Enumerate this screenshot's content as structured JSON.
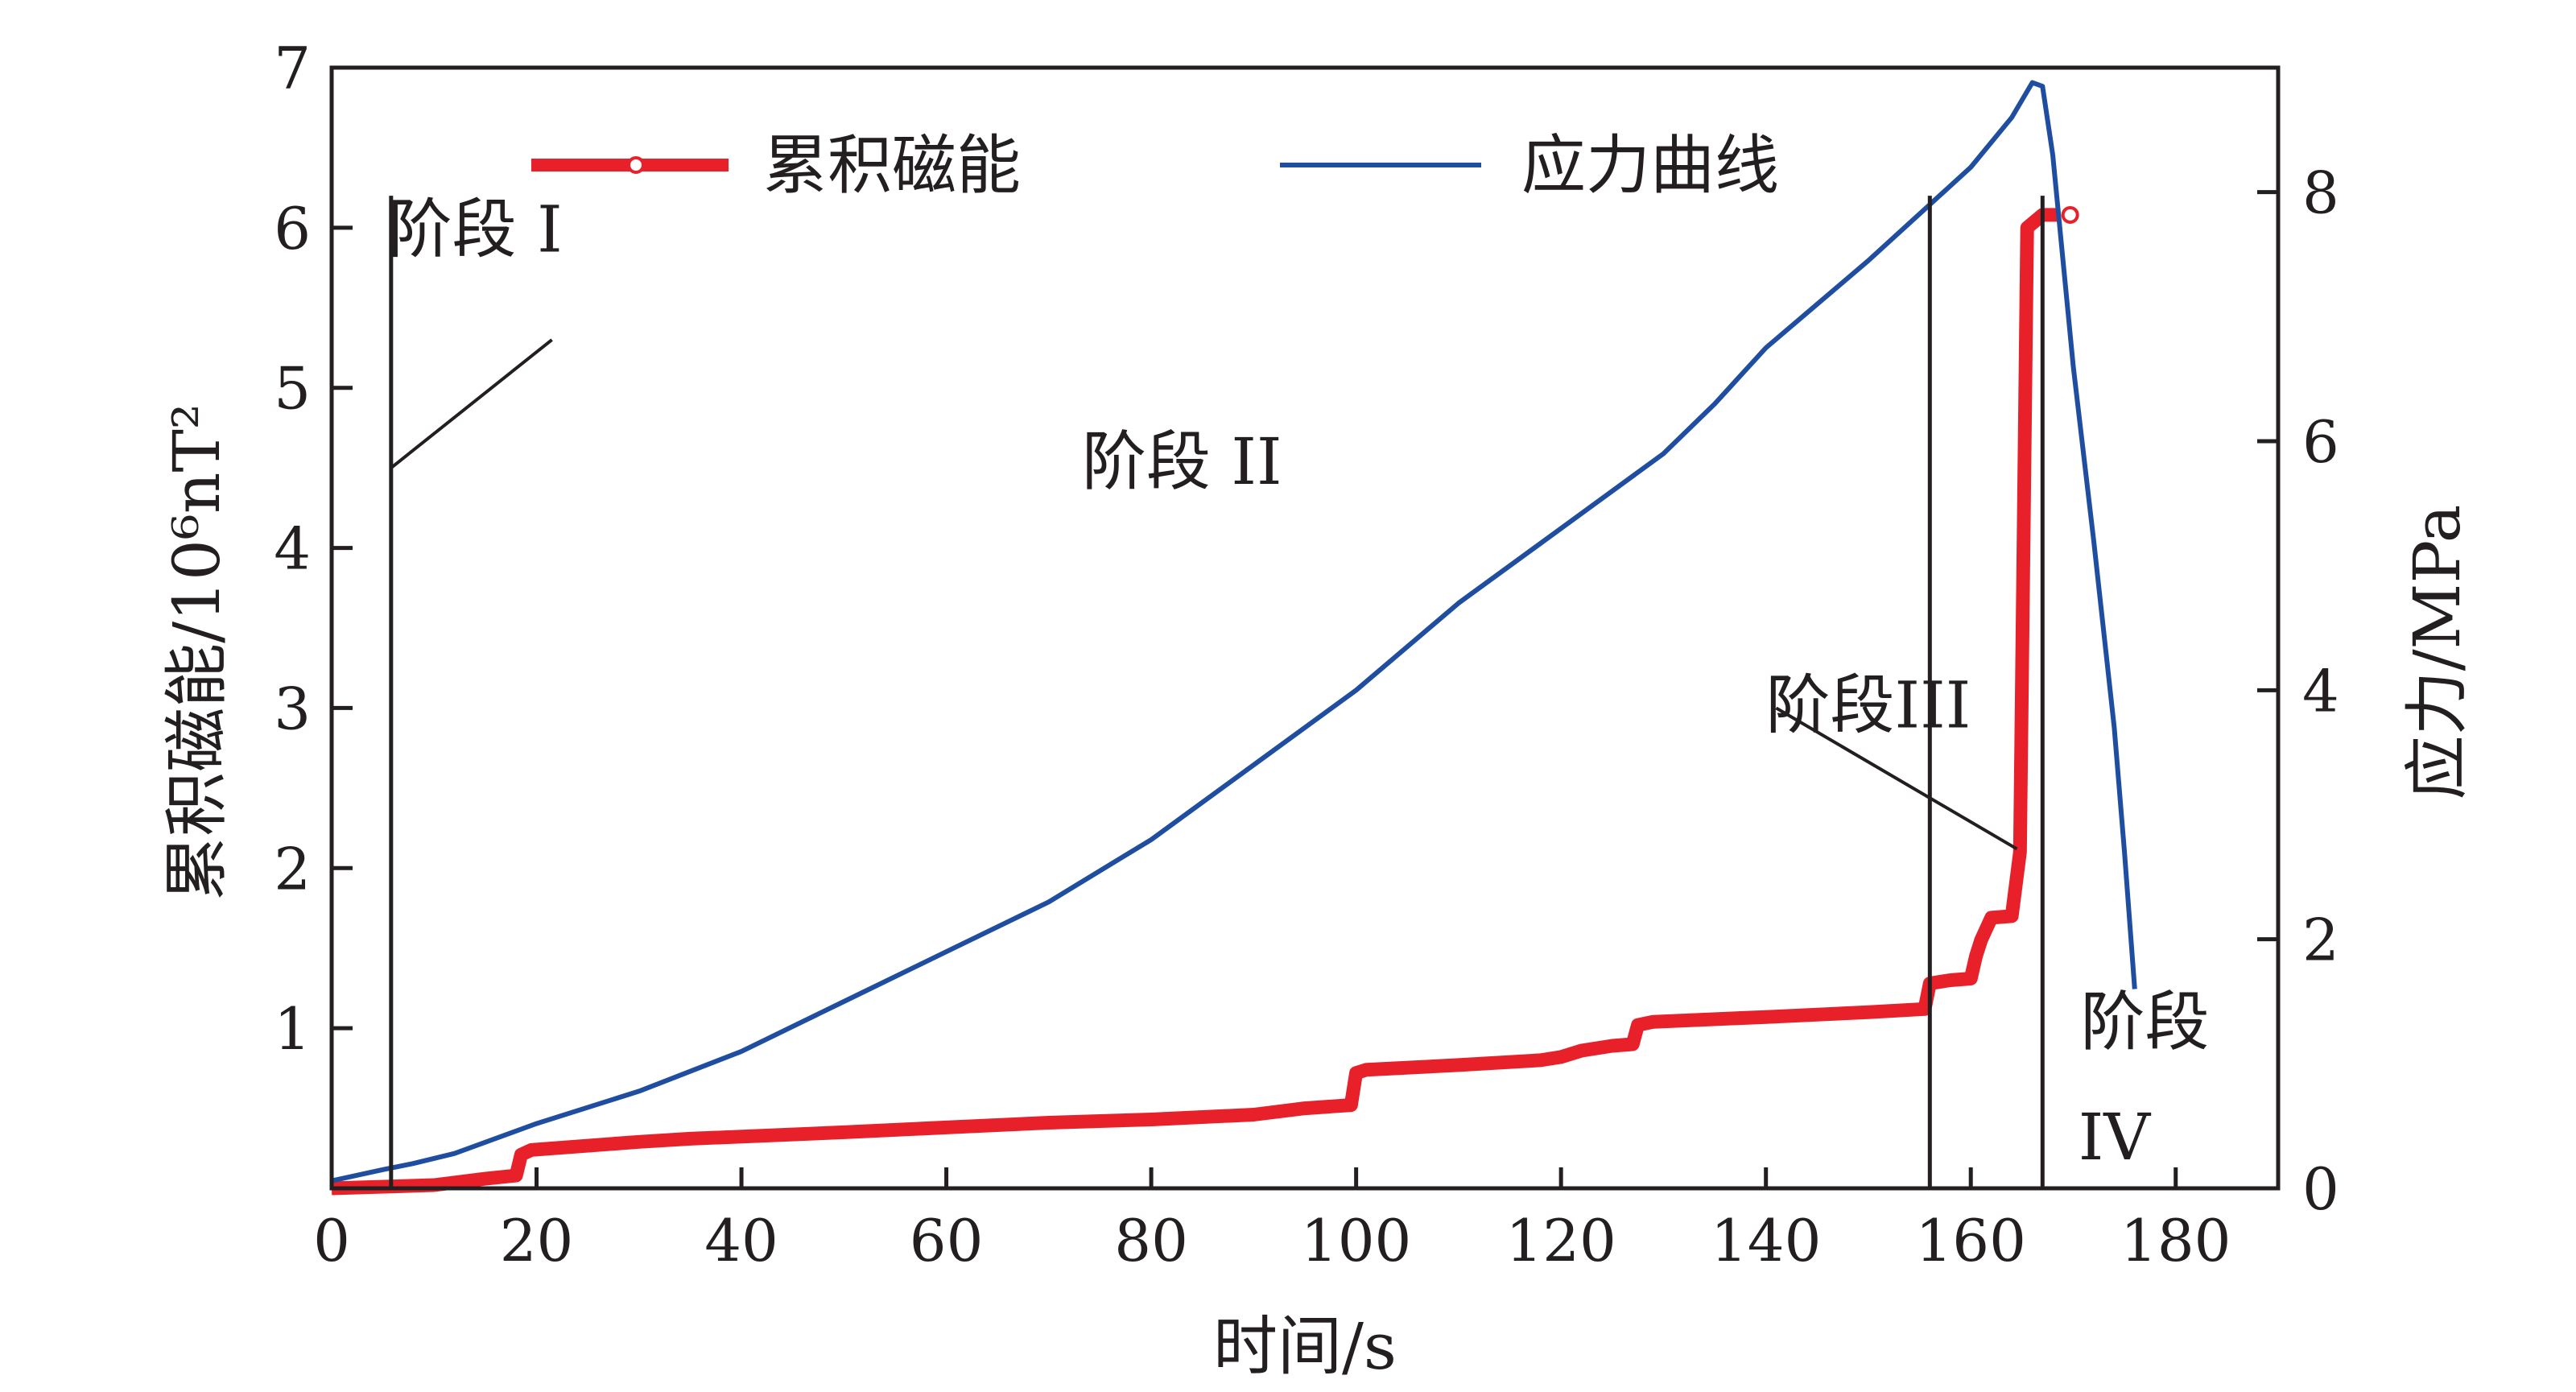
{
  "chart_data": {
    "type": "line",
    "xlabel": "时间/s",
    "ylabel_left": "累积磁能/10⁶nT²",
    "ylabel_right": "应力/MPa",
    "xlim": [
      0,
      190
    ],
    "ylim_left": [
      0,
      7
    ],
    "ylim_right": [
      0,
      9
    ],
    "x_ticks": [
      "0",
      "20",
      "40",
      "60",
      "80",
      "100",
      "120",
      "140",
      "160",
      "180"
    ],
    "y_left_ticks": [
      "1",
      "2",
      "3",
      "4",
      "5",
      "6",
      "7"
    ],
    "y_right_ticks": [
      "0",
      "2",
      "4",
      "6",
      "8"
    ],
    "grid": false,
    "legend_position": "top",
    "series": [
      {
        "name": "累积磁能",
        "axis": "left",
        "color": "#e8202a",
        "marker": "open-circle",
        "points": [
          [
            0,
            0
          ],
          [
            10,
            0.02
          ],
          [
            15,
            0.06
          ],
          [
            18,
            0.08
          ],
          [
            18.5,
            0.21
          ],
          [
            19.5,
            0.24
          ],
          [
            30,
            0.29
          ],
          [
            35,
            0.31
          ],
          [
            50,
            0.35
          ],
          [
            60,
            0.38
          ],
          [
            70,
            0.41
          ],
          [
            80,
            0.43
          ],
          [
            90,
            0.46
          ],
          [
            95,
            0.5
          ],
          [
            99.5,
            0.52
          ],
          [
            100,
            0.72
          ],
          [
            101,
            0.74
          ],
          [
            110,
            0.77
          ],
          [
            118,
            0.8
          ],
          [
            120,
            0.82
          ],
          [
            122,
            0.86
          ],
          [
            125,
            0.89
          ],
          [
            127,
            0.9
          ],
          [
            127.5,
            1.02
          ],
          [
            129,
            1.04
          ],
          [
            140,
            1.07
          ],
          [
            150,
            1.1
          ],
          [
            155.5,
            1.12
          ],
          [
            156,
            1.28
          ],
          [
            158,
            1.3
          ],
          [
            160,
            1.31
          ],
          [
            160.5,
            1.45
          ],
          [
            161,
            1.55
          ],
          [
            162,
            1.69
          ],
          [
            164,
            1.7
          ],
          [
            164.8,
            2.1
          ],
          [
            165.5,
            6.0
          ],
          [
            167,
            6.08
          ],
          [
            168.6,
            6.08
          ]
        ]
      },
      {
        "name": "应力曲线",
        "axis": "right",
        "color": "#1f4ea1",
        "points": [
          [
            0,
            0.06
          ],
          [
            5,
            0.15
          ],
          [
            8,
            0.2
          ],
          [
            12,
            0.28
          ],
          [
            20,
            0.52
          ],
          [
            30,
            0.78
          ],
          [
            40,
            1.1
          ],
          [
            50,
            1.5
          ],
          [
            60,
            1.9
          ],
          [
            70,
            2.3
          ],
          [
            80,
            2.8
          ],
          [
            90,
            3.4
          ],
          [
            100,
            4.0
          ],
          [
            110,
            4.7
          ],
          [
            120,
            5.3
          ],
          [
            130,
            5.9
          ],
          [
            135,
            6.3
          ],
          [
            140,
            6.75
          ],
          [
            150,
            7.45
          ],
          [
            160,
            8.2
          ],
          [
            164,
            8.6
          ],
          [
            166,
            8.88
          ],
          [
            167,
            8.85
          ],
          [
            168,
            8.3
          ],
          [
            170,
            6.6
          ],
          [
            172,
            5.2
          ],
          [
            174,
            3.7
          ],
          [
            175,
            2.7
          ],
          [
            176,
            1.6
          ]
        ]
      }
    ],
    "stage_lines_x": [
      5.8,
      156,
      167
    ],
    "annotations": [
      {
        "text": "阶段 I",
        "x": 14,
        "y_left": 5.85
      },
      {
        "text": "阶段 II",
        "x": 83,
        "y_left": 4.4
      },
      {
        "text": "阶段III",
        "x": 150,
        "y_left": 2.88
      },
      {
        "text": "阶段",
        "x": 177,
        "y_left": 0.9
      },
      {
        "text": "IV",
        "x": 174,
        "y_left": 0.18
      }
    ],
    "leader_lines": [
      {
        "from": [
          5.8,
          4.5
        ],
        "to": [
          21.5,
          5.3
        ]
      },
      {
        "from": [
          141,
          3.0
        ],
        "to": [
          164.5,
          2.12
        ]
      }
    ]
  }
}
